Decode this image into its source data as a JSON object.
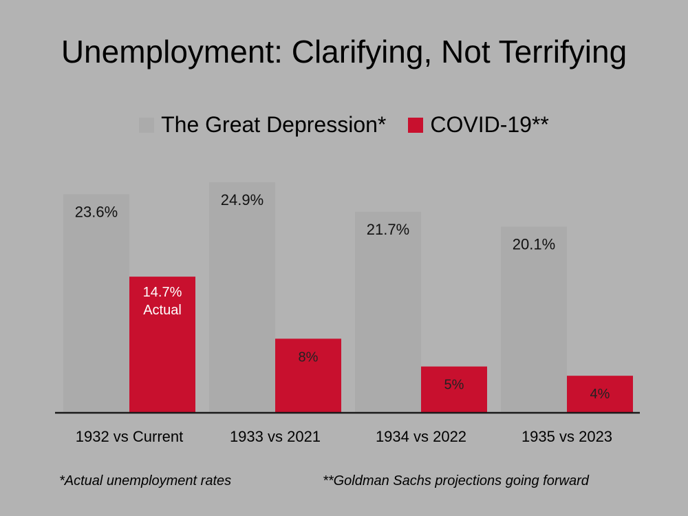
{
  "title": "Unemployment: Clarifying, Not Terrifying",
  "colors": {
    "background": "#b3b3b3",
    "depression": "#ababab",
    "covid": "#c8102e",
    "axis": "#1a1a1a"
  },
  "chart_data": {
    "type": "bar",
    "title": "Unemployment: Clarifying, Not Terrifying",
    "categories": [
      "1932 vs Current",
      "1933 vs 2021",
      "1934 vs 2022",
      "1935 vs 2023"
    ],
    "series": [
      {
        "name": "The Great Depression*",
        "values": [
          23.6,
          24.9,
          21.7,
          20.1
        ],
        "labels": [
          "23.6%",
          "24.9%",
          "21.7%",
          "20.1%"
        ],
        "color": "#ababab"
      },
      {
        "name": "COVID-19**",
        "values": [
          14.7,
          8,
          5,
          4
        ],
        "labels": [
          "14.7%\nActual",
          "8%",
          "5%",
          "4%"
        ],
        "color": "#c8102e"
      }
    ],
    "ylim": [
      0,
      26
    ],
    "grid": false,
    "legend_position": "top"
  },
  "footnotes": {
    "left": "*Actual unemployment rates",
    "right": "**Goldman Sachs projections going forward"
  }
}
